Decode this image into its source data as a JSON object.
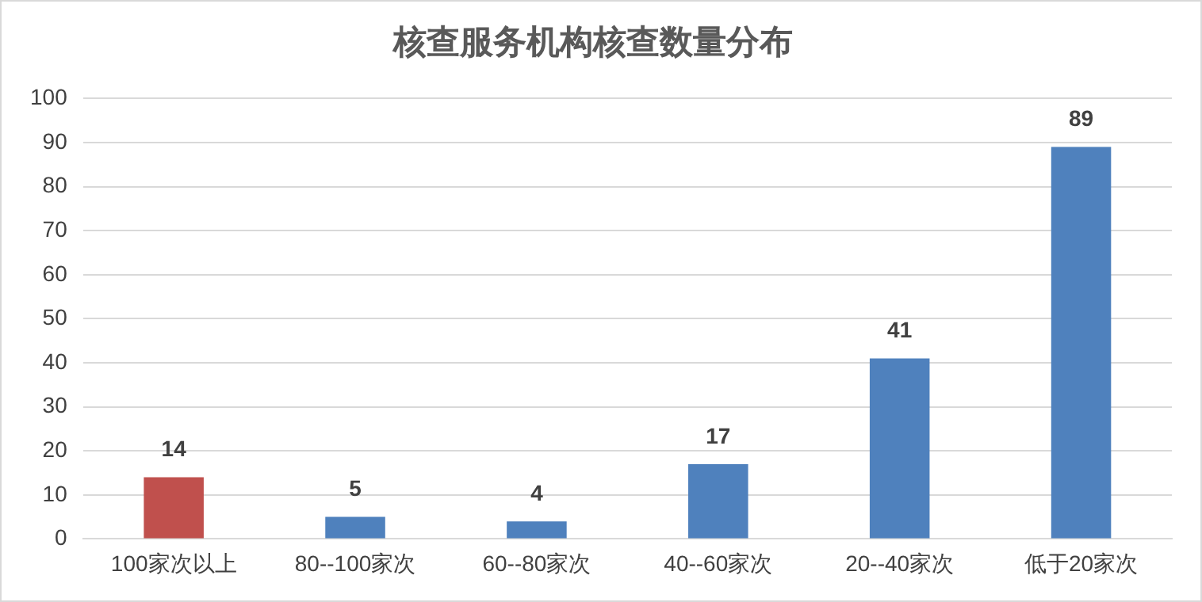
{
  "chart_data": {
    "type": "bar",
    "title": "核查服务机构核查数量分布",
    "categories": [
      "100家次以上",
      "80--100家次",
      "60--80家次",
      "40--60家次",
      "20--40家次",
      "低于20家次"
    ],
    "values": [
      14,
      5,
      4,
      17,
      41,
      89
    ],
    "colors": [
      "#c0504d",
      "#4f81bd",
      "#4f81bd",
      "#4f81bd",
      "#4f81bd",
      "#4f81bd"
    ],
    "ylim": [
      0,
      100
    ],
    "yticks": [
      0,
      10,
      20,
      30,
      40,
      50,
      60,
      70,
      80,
      90,
      100
    ],
    "grid": "y",
    "legend": false,
    "data_labels": true
  }
}
